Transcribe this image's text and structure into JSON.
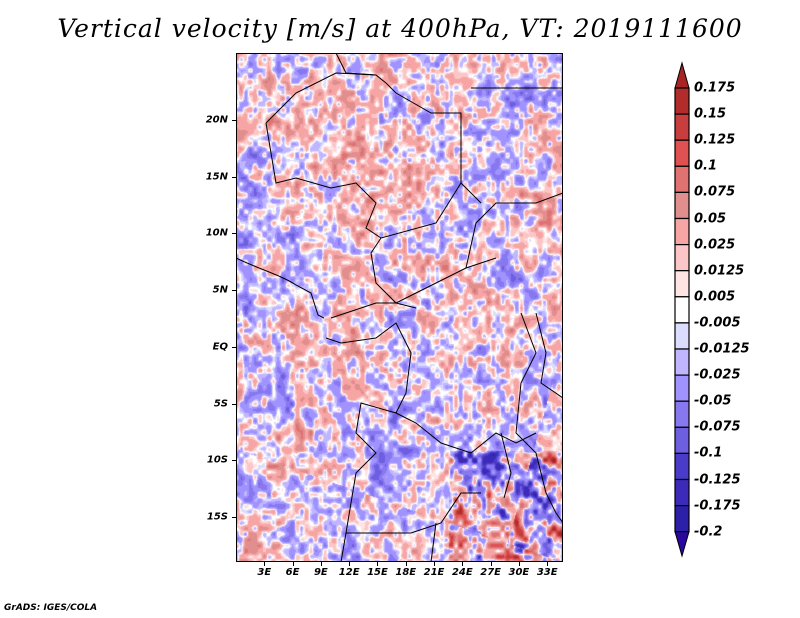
{
  "title": "Vertical velocity [m/s] at 400hPa, VT: 2019111600",
  "credit": "GrADS: IGES/COLA",
  "map": {
    "lon_range_deg": [
      0,
      34.7
    ],
    "lat_range_deg": [
      -19.7,
      25.9
    ],
    "lat_labels": [
      {
        "text": "20N",
        "lat": 20
      },
      {
        "text": "15N",
        "lat": 15
      },
      {
        "text": "10N",
        "lat": 10
      },
      {
        "text": "5N",
        "lat": 5
      },
      {
        "text": "EQ",
        "lat": 0
      },
      {
        "text": "5S",
        "lat": -5
      },
      {
        "text": "10S",
        "lat": -10
      },
      {
        "text": "15S",
        "lat": -15
      }
    ],
    "lon_labels": [
      {
        "text": "3E",
        "lon": 3
      },
      {
        "text": "6E",
        "lon": 6
      },
      {
        "text": "9E",
        "lon": 9
      },
      {
        "text": "12E",
        "lon": 12
      },
      {
        "text": "15E",
        "lon": 15
      },
      {
        "text": "18E",
        "lon": 18
      },
      {
        "text": "21E",
        "lon": 21
      },
      {
        "text": "24E",
        "lon": 24
      },
      {
        "text": "27E",
        "lon": 27
      },
      {
        "text": "30E",
        "lon": 30
      },
      {
        "text": "33E",
        "lon": 33
      }
    ]
  },
  "colorbar": {
    "labels": [
      "0.175",
      "0.15",
      "0.125",
      "0.1",
      "0.075",
      "0.05",
      "0.025",
      "0.0125",
      "0.005",
      "-0.005",
      "-0.0125",
      "-0.025",
      "-0.05",
      "-0.075",
      "-0.1",
      "-0.125",
      "-0.175",
      "-0.2"
    ],
    "levels": [
      0.175,
      0.15,
      0.125,
      0.1,
      0.075,
      0.05,
      0.025,
      0.0125,
      0.005,
      -0.005,
      -0.0125,
      -0.025,
      -0.05,
      -0.075,
      -0.1,
      -0.125,
      -0.175,
      -0.2
    ],
    "colors": [
      "#a82424",
      "#b22c2c",
      "#c83e3e",
      "#e05252",
      "#e07272",
      "#e08e8e",
      "#f6a4a4",
      "#fcc6c6",
      "#ffe4e4",
      "#ffffff",
      "#dcdcff",
      "#c0b6ff",
      "#a092ff",
      "#8878f0",
      "#6e5ee0",
      "#4a3cc8",
      "#3c2ab8",
      "#2c20a8",
      "#2a08a0"
    ]
  }
}
